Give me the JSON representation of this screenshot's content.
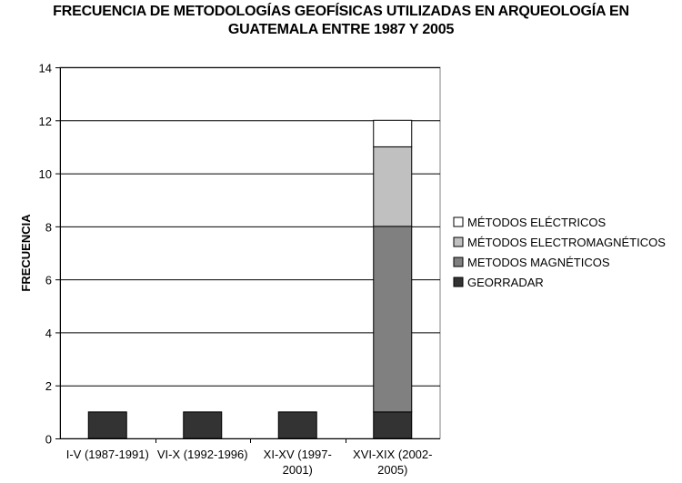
{
  "chart_data": {
    "type": "bar",
    "stacked": true,
    "title_lines": [
      "FRECUENCIA DE METODOLOGÍAS GEOFÍSICAS UTILIZADAS EN ARQUEOLOGÍA EN",
      "GUATEMALA ENTRE 1987 Y 2005"
    ],
    "ylabel": "FRECUENCIA",
    "xlabel": "",
    "ylim": [
      0,
      14
    ],
    "yticks": [
      0,
      2,
      4,
      6,
      8,
      10,
      12,
      14
    ],
    "grid": true,
    "legend_position": "right",
    "categories": [
      [
        "I-V (1987-1991)"
      ],
      [
        "VI-X (1992-1996)"
      ],
      [
        "XI-XV (1997-",
        "2001)"
      ],
      [
        "XVI-XIX (2002-",
        "2005)"
      ]
    ],
    "series": [
      {
        "name": "GEORRADAR",
        "color": "#333333",
        "values": [
          1,
          1,
          1,
          1
        ]
      },
      {
        "name": "METODOS MAGNÉTICOS",
        "color": "#808080",
        "values": [
          0,
          0,
          0,
          7
        ]
      },
      {
        "name": "MÉTODOS ELECTROMAGNÉTICOS",
        "color": "#c0c0c0",
        "values": [
          0,
          0,
          0,
          3
        ]
      },
      {
        "name": "MÉTODOS ELÉCTRICOS",
        "color": "#ffffff",
        "values": [
          0,
          0,
          0,
          1
        ]
      }
    ],
    "legend_order": [
      3,
      2,
      1,
      0
    ]
  }
}
